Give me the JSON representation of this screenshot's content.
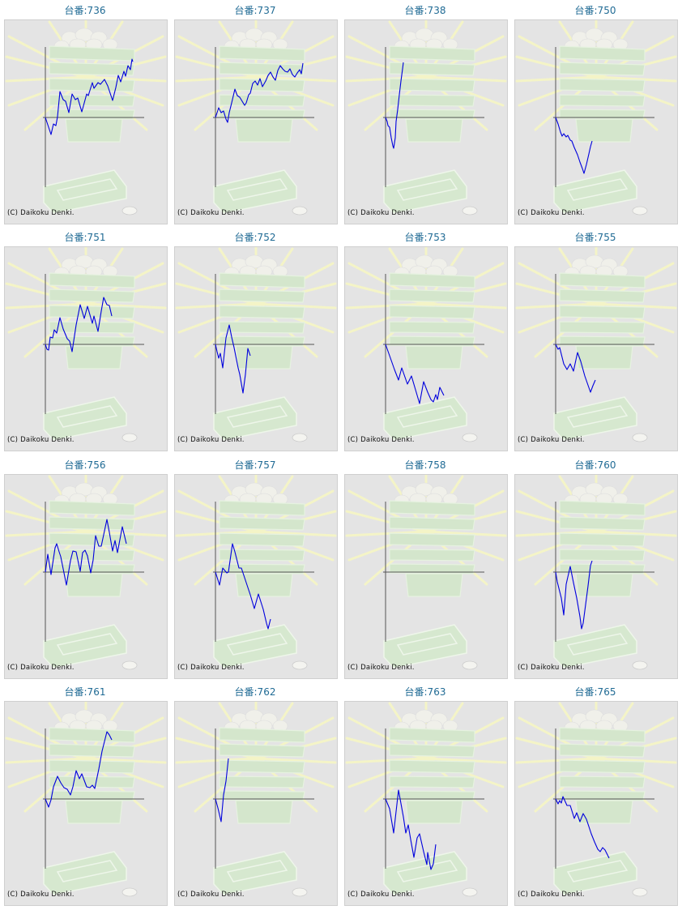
{
  "copyright": "(C) Daikoku Denki.",
  "line_color": "#0000dd",
  "chart_data": [
    {
      "type": "line",
      "title": "台番:736",
      "xlim": [
        -3,
        122
      ],
      "ylim": [
        -86,
        87
      ],
      "x": [
        0,
        7,
        10,
        13,
        15,
        18,
        22,
        25,
        29,
        33,
        37,
        40,
        45,
        51,
        53,
        58,
        60,
        65,
        68,
        73,
        77,
        83,
        87,
        90,
        93,
        97,
        99,
        102,
        105,
        107,
        108
      ],
      "y": [
        0,
        -21,
        -8,
        -10,
        1,
        32,
        22,
        20,
        6,
        29,
        22,
        24,
        7,
        29,
        27,
        43,
        36,
        43,
        41,
        47,
        39,
        21,
        37,
        52,
        44,
        57,
        51,
        64,
        59,
        72,
        69
      ]
    },
    {
      "type": "line",
      "title": "台番:737",
      "xlim": [
        -3,
        122
      ],
      "ylim": [
        -86,
        87
      ],
      "x": [
        0,
        4,
        7,
        10,
        13,
        15,
        17,
        20,
        24,
        27,
        30,
        33,
        36,
        38,
        41,
        43,
        46,
        49,
        52,
        55,
        58,
        62,
        65,
        68,
        71,
        74,
        77,
        80,
        83,
        86,
        89,
        92,
        95,
        98,
        101,
        104,
        106,
        108
      ],
      "y": [
        0,
        12,
        6,
        8,
        -2,
        -6,
        6,
        18,
        35,
        27,
        25,
        20,
        15,
        18,
        28,
        30,
        42,
        45,
        40,
        48,
        38,
        45,
        52,
        56,
        50,
        46,
        58,
        64,
        60,
        57,
        56,
        60,
        53,
        50,
        55,
        59,
        54,
        67
      ]
    },
    {
      "type": "line",
      "title": "台番:738",
      "xlim": [
        -3,
        122
      ],
      "ylim": [
        -86,
        87
      ],
      "x": [
        0,
        2,
        3,
        5,
        7,
        9,
        10,
        12,
        13,
        15,
        17,
        19,
        21,
        22
      ],
      "y": [
        0,
        -5,
        -10,
        -12,
        -25,
        -35,
        -38,
        -25,
        -5,
        10,
        28,
        45,
        60,
        68
      ]
    },
    {
      "type": "line",
      "title": "台番:750",
      "xlim": [
        -3,
        122
      ],
      "ylim": [
        -86,
        87
      ],
      "x": [
        0,
        3,
        6,
        8,
        10,
        13,
        15,
        18,
        20,
        23,
        27,
        30,
        33,
        35,
        38,
        41,
        43,
        45
      ],
      "y": [
        0,
        -8,
        -18,
        -23,
        -20,
        -24,
        -22,
        -28,
        -29,
        -37,
        -46,
        -55,
        -63,
        -69,
        -58,
        -45,
        -36,
        -29
      ]
    },
    {
      "type": "line",
      "title": "台番:751",
      "xlim": [
        -3,
        122
      ],
      "ylim": [
        -86,
        87
      ],
      "x": [
        0,
        2,
        4,
        6,
        9,
        11,
        14,
        18,
        22,
        27,
        30,
        33,
        38,
        43,
        48,
        52,
        58,
        60,
        65,
        69,
        72,
        76,
        79,
        82
      ],
      "y": [
        0,
        -6,
        -7,
        9,
        8,
        18,
        14,
        33,
        19,
        7,
        4,
        -9,
        24,
        49,
        32,
        47,
        26,
        35,
        16,
        41,
        58,
        49,
        48,
        35
      ]
    },
    {
      "type": "line",
      "title": "台番:752",
      "xlim": [
        -3,
        122
      ],
      "ylim": [
        -86,
        87
      ],
      "x": [
        0,
        2,
        4,
        6,
        9,
        13,
        17,
        20,
        23,
        28,
        30,
        34,
        37,
        40,
        43
      ],
      "y": [
        0,
        -9,
        -17,
        -11,
        -29,
        8,
        24,
        9,
        -4,
        -29,
        -37,
        -60,
        -37,
        -5,
        -14
      ]
    },
    {
      "type": "line",
      "title": "台番:753",
      "xlim": [
        -3,
        122
      ],
      "ylim": [
        -86,
        87
      ],
      "x": [
        0,
        5,
        11,
        16,
        20,
        27,
        32,
        37,
        42,
        47,
        52,
        56,
        59,
        62,
        64,
        67,
        72
      ],
      "y": [
        0,
        -14,
        -31,
        -44,
        -29,
        -49,
        -39,
        -56,
        -73,
        -46,
        -59,
        -68,
        -71,
        -62,
        -68,
        -53,
        -63
      ]
    },
    {
      "type": "line",
      "title": "台番:755",
      "xlim": [
        -3,
        122
      ],
      "ylim": [
        -86,
        87
      ],
      "x": [
        0,
        3,
        5,
        10,
        14,
        18,
        22,
        27,
        31,
        36,
        43,
        46,
        49
      ],
      "y": [
        0,
        -6,
        -4,
        -24,
        -31,
        -24,
        -33,
        -10,
        -21,
        -39,
        -59,
        -51,
        -44
      ]
    },
    {
      "type": "line",
      "title": "台番:756",
      "xlim": [
        -3,
        122
      ],
      "ylim": [
        -86,
        87
      ],
      "x": [
        0,
        3,
        7,
        12,
        14,
        17,
        19,
        23,
        26,
        31,
        34,
        38,
        43,
        46,
        49,
        52,
        56,
        59,
        62,
        66,
        69,
        76,
        79,
        83,
        86,
        89,
        95,
        100
      ],
      "y": [
        0,
        22,
        -3,
        30,
        35,
        25,
        19,
        -1,
        -16,
        14,
        26,
        25,
        1,
        24,
        27,
        20,
        -1,
        15,
        45,
        32,
        32,
        65,
        49,
        26,
        39,
        24,
        56,
        35
      ]
    },
    {
      "type": "line",
      "title": "台番:757",
      "xlim": [
        -3,
        122
      ],
      "ylim": [
        -86,
        87
      ],
      "x": [
        0,
        5,
        9,
        14,
        16,
        21,
        24,
        29,
        32,
        38,
        43,
        48,
        53,
        59,
        63,
        65,
        68
      ],
      "y": [
        0,
        -16,
        5,
        -1,
        0,
        35,
        25,
        5,
        5,
        -13,
        -28,
        -45,
        -27,
        -46,
        -63,
        -70,
        -58
      ]
    },
    {
      "type": "line",
      "title": "台番:758",
      "xlim": [
        -3,
        122
      ],
      "ylim": [
        -86,
        87
      ],
      "x": [],
      "y": []
    },
    {
      "type": "line",
      "title": "台番:760",
      "xlim": [
        -3,
        122
      ],
      "ylim": [
        -86,
        87
      ],
      "x": [
        0,
        2,
        7,
        10,
        13,
        18,
        22,
        26,
        30,
        32,
        34,
        40,
        43,
        45
      ],
      "y": [
        0,
        -12,
        -32,
        -53,
        -15,
        7,
        -13,
        -32,
        -55,
        -70,
        -63,
        -17,
        8,
        14
      ]
    },
    {
      "type": "line",
      "title": "台番:761",
      "xlim": [
        -3,
        122
      ],
      "ylim": [
        -86,
        87
      ],
      "x": [
        0,
        4,
        7,
        10,
        15,
        19,
        23,
        27,
        31,
        34,
        38,
        42,
        45,
        51,
        55,
        58,
        61,
        66,
        70,
        76,
        79,
        82
      ],
      "y": [
        0,
        -10,
        -1,
        15,
        28,
        20,
        14,
        12,
        5,
        15,
        35,
        25,
        31,
        15,
        14,
        17,
        13,
        37,
        59,
        83,
        79,
        73
      ]
    },
    {
      "type": "line",
      "title": "台番:762",
      "xlim": [
        -3,
        122
      ],
      "ylim": [
        -86,
        87
      ],
      "x": [
        0,
        3,
        7,
        10,
        13,
        16
      ],
      "y": [
        0,
        -11,
        -28,
        5,
        22,
        50
      ]
    },
    {
      "type": "line",
      "title": "台番:763",
      "xlim": [
        -3,
        122
      ],
      "ylim": [
        -86,
        87
      ],
      "x": [
        0,
        5,
        10,
        16,
        22,
        25,
        28,
        31,
        35,
        39,
        42,
        47,
        51,
        52,
        56,
        59,
        62
      ],
      "y": [
        0,
        -12,
        -42,
        11,
        -22,
        -42,
        -32,
        -50,
        -72,
        -48,
        -43,
        -65,
        -81,
        -66,
        -87,
        -80,
        -56
      ]
    },
    {
      "type": "line",
      "title": "台番:765",
      "xlim": [
        -3,
        122
      ],
      "ylim": [
        -86,
        87
      ],
      "x": [
        0,
        3,
        5,
        7,
        9,
        14,
        18,
        23,
        26,
        30,
        34,
        38,
        44,
        48,
        52,
        55,
        58,
        61,
        66
      ],
      "y": [
        0,
        -6,
        -2,
        -5,
        3,
        -8,
        -8,
        -24,
        -17,
        -28,
        -18,
        -25,
        -43,
        -53,
        -62,
        -65,
        -60,
        -63,
        -73
      ]
    }
  ]
}
